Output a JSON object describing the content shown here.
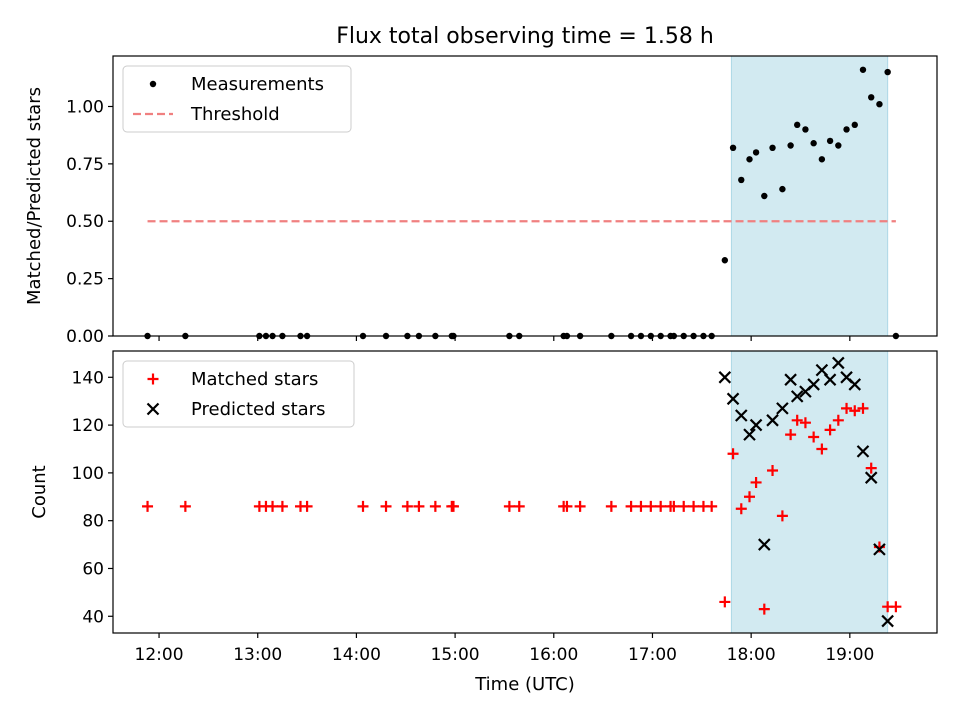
{
  "title": "Flux total observing time = 1.58 h",
  "colors": {
    "measurement": "#000000",
    "threshold": "#f08080",
    "matched": "#ff0000",
    "predicted": "#000000",
    "shade": "#add8e6"
  },
  "chart_data": [
    {
      "type": "scatter",
      "ylabel": "Matched/Predicted stars",
      "ylim": [
        0,
        1.22
      ],
      "yticks": [
        "0.00",
        "0.25",
        "0.50",
        "0.75",
        "1.00"
      ],
      "xlim": [
        "11:32",
        "19:53"
      ],
      "shaded_span": [
        "17:48",
        "19:23"
      ],
      "legend": {
        "placement": "upper left",
        "entries": [
          "Measurements",
          "Threshold"
        ]
      },
      "series": [
        {
          "name": "Measurements",
          "marker": "dot",
          "points": [
            [
              "11:53",
              0.0
            ],
            [
              "12:16",
              0.0
            ],
            [
              "13:01",
              0.0
            ],
            [
              "13:05",
              0.0
            ],
            [
              "13:09",
              0.0
            ],
            [
              "13:15",
              0.0
            ],
            [
              "13:26",
              0.0
            ],
            [
              "13:30",
              0.0
            ],
            [
              "14:04",
              0.0
            ],
            [
              "14:18",
              0.0
            ],
            [
              "14:31",
              0.0
            ],
            [
              "14:38",
              0.0
            ],
            [
              "14:48",
              0.0
            ],
            [
              "14:58",
              0.0
            ],
            [
              "14:59",
              0.0
            ],
            [
              "15:33",
              0.0
            ],
            [
              "15:39",
              0.0
            ],
            [
              "16:06",
              0.0
            ],
            [
              "16:08",
              0.0
            ],
            [
              "16:16",
              0.0
            ],
            [
              "16:35",
              0.0
            ],
            [
              "16:47",
              0.0
            ],
            [
              "16:53",
              0.0
            ],
            [
              "16:59",
              0.0
            ],
            [
              "17:05",
              0.0
            ],
            [
              "17:11",
              0.0
            ],
            [
              "17:13",
              0.0
            ],
            [
              "17:19",
              0.0
            ],
            [
              "17:25",
              0.0
            ],
            [
              "17:31",
              0.0
            ],
            [
              "17:36",
              0.0
            ],
            [
              "17:44",
              0.33
            ],
            [
              "17:49",
              0.82
            ],
            [
              "17:54",
              0.68
            ],
            [
              "17:59",
              0.77
            ],
            [
              "18:03",
              0.8
            ],
            [
              "18:08",
              0.61
            ],
            [
              "18:13",
              0.82
            ],
            [
              "18:19",
              0.64
            ],
            [
              "18:24",
              0.83
            ],
            [
              "18:28",
              0.92
            ],
            [
              "18:33",
              0.9
            ],
            [
              "18:38",
              0.84
            ],
            [
              "18:43",
              0.77
            ],
            [
              "18:48",
              0.85
            ],
            [
              "18:53",
              0.83
            ],
            [
              "18:58",
              0.9
            ],
            [
              "19:03",
              0.92
            ],
            [
              "19:08",
              1.16
            ],
            [
              "19:13",
              1.04
            ],
            [
              "19:18",
              1.01
            ],
            [
              "19:23",
              1.15
            ],
            [
              "19:28",
              0.0
            ]
          ]
        },
        {
          "name": "Threshold",
          "line": "dashed",
          "points": [
            [
              "11:53",
              0.5
            ],
            [
              "19:28",
              0.5
            ]
          ]
        }
      ]
    },
    {
      "type": "scatter",
      "xlabel": "Time (UTC)",
      "ylabel": "Count",
      "ylim": [
        33,
        151
      ],
      "yticks": [
        "40",
        "60",
        "80",
        "100",
        "120",
        "140"
      ],
      "xlim": [
        "11:32",
        "19:53"
      ],
      "xticks": [
        "12:00",
        "13:00",
        "14:00",
        "15:00",
        "16:00",
        "17:00",
        "18:00",
        "19:00"
      ],
      "shaded_span": [
        "17:48",
        "19:23"
      ],
      "legend": {
        "placement": "upper left",
        "entries": [
          "Matched stars",
          "Predicted stars"
        ]
      },
      "series": [
        {
          "name": "Matched stars",
          "marker": "plus",
          "points": [
            [
              "11:53",
              86
            ],
            [
              "12:16",
              86
            ],
            [
              "13:01",
              86
            ],
            [
              "13:05",
              86
            ],
            [
              "13:09",
              86
            ],
            [
              "13:15",
              86
            ],
            [
              "13:26",
              86
            ],
            [
              "13:30",
              86
            ],
            [
              "14:04",
              86
            ],
            [
              "14:18",
              86
            ],
            [
              "14:31",
              86
            ],
            [
              "14:38",
              86
            ],
            [
              "14:48",
              86
            ],
            [
              "14:58",
              86
            ],
            [
              "14:59",
              86
            ],
            [
              "15:33",
              86
            ],
            [
              "15:39",
              86
            ],
            [
              "16:06",
              86
            ],
            [
              "16:08",
              86
            ],
            [
              "16:16",
              86
            ],
            [
              "16:35",
              86
            ],
            [
              "16:47",
              86
            ],
            [
              "16:53",
              86
            ],
            [
              "16:59",
              86
            ],
            [
              "17:05",
              86
            ],
            [
              "17:11",
              86
            ],
            [
              "17:13",
              86
            ],
            [
              "17:19",
              86
            ],
            [
              "17:25",
              86
            ],
            [
              "17:31",
              86
            ],
            [
              "17:36",
              86
            ],
            [
              "17:44",
              46
            ],
            [
              "17:49",
              108
            ],
            [
              "17:54",
              85
            ],
            [
              "17:59",
              90
            ],
            [
              "18:03",
              96
            ],
            [
              "18:08",
              43
            ],
            [
              "18:13",
              101
            ],
            [
              "18:19",
              82
            ],
            [
              "18:24",
              116
            ],
            [
              "18:28",
              122
            ],
            [
              "18:33",
              121
            ],
            [
              "18:38",
              115
            ],
            [
              "18:43",
              110
            ],
            [
              "18:48",
              118
            ],
            [
              "18:53",
              122
            ],
            [
              "18:58",
              127
            ],
            [
              "19:03",
              126
            ],
            [
              "19:08",
              127
            ],
            [
              "19:13",
              102
            ],
            [
              "19:18",
              69
            ],
            [
              "19:23",
              44
            ],
            [
              "19:28",
              44
            ]
          ]
        },
        {
          "name": "Predicted stars",
          "marker": "x",
          "points": [
            [
              "17:44",
              140
            ],
            [
              "17:49",
              131
            ],
            [
              "17:54",
              124
            ],
            [
              "17:59",
              116
            ],
            [
              "18:03",
              120
            ],
            [
              "18:08",
              70
            ],
            [
              "18:13",
              122
            ],
            [
              "18:19",
              127
            ],
            [
              "18:24",
              139
            ],
            [
              "18:28",
              132
            ],
            [
              "18:33",
              134
            ],
            [
              "18:38",
              137
            ],
            [
              "18:43",
              143
            ],
            [
              "18:48",
              139
            ],
            [
              "18:53",
              146
            ],
            [
              "18:58",
              140
            ],
            [
              "19:03",
              137
            ],
            [
              "19:08",
              109
            ],
            [
              "19:13",
              98
            ],
            [
              "19:18",
              68
            ],
            [
              "19:23",
              38
            ]
          ]
        }
      ]
    }
  ]
}
